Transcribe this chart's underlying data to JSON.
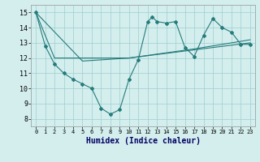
{
  "title": "",
  "xlabel": "Humidex (Indice chaleur)",
  "ylabel": "",
  "bg_color": "#d4eeee",
  "grid_color": "#9ecece",
  "line_color": "#267b7b",
  "xlim": [
    -0.5,
    23.5
  ],
  "ylim": [
    7.5,
    15.5
  ],
  "xticks": [
    0,
    1,
    2,
    3,
    4,
    5,
    6,
    7,
    8,
    9,
    10,
    11,
    12,
    13,
    14,
    15,
    16,
    17,
    18,
    19,
    20,
    21,
    22,
    23
  ],
  "yticks": [
    8,
    9,
    10,
    11,
    12,
    13,
    14,
    15
  ],
  "series1": [
    [
      0,
      15.0
    ],
    [
      1,
      12.8
    ],
    [
      2,
      11.6
    ],
    [
      3,
      11.0
    ],
    [
      4,
      10.6
    ],
    [
      5,
      10.3
    ],
    [
      6,
      10.0
    ],
    [
      7,
      8.7
    ],
    [
      8,
      8.3
    ],
    [
      9,
      8.6
    ],
    [
      10,
      10.6
    ],
    [
      11,
      11.9
    ],
    [
      12,
      14.4
    ],
    [
      12.5,
      14.7
    ],
    [
      13,
      14.4
    ],
    [
      14,
      14.3
    ],
    [
      15,
      14.4
    ],
    [
      16,
      12.7
    ],
    [
      17,
      12.1
    ],
    [
      18,
      13.5
    ],
    [
      19,
      14.6
    ],
    [
      20,
      14.0
    ],
    [
      21,
      13.7
    ],
    [
      22,
      12.9
    ],
    [
      23,
      12.9
    ]
  ],
  "series2": [
    [
      0,
      15.0
    ],
    [
      2,
      12.0
    ],
    [
      10,
      12.0
    ],
    [
      23,
      13.0
    ]
  ],
  "series3": [
    [
      0,
      15.0
    ],
    [
      5,
      11.8
    ],
    [
      10,
      12.0
    ],
    [
      17,
      12.6
    ],
    [
      23,
      13.2
    ]
  ]
}
